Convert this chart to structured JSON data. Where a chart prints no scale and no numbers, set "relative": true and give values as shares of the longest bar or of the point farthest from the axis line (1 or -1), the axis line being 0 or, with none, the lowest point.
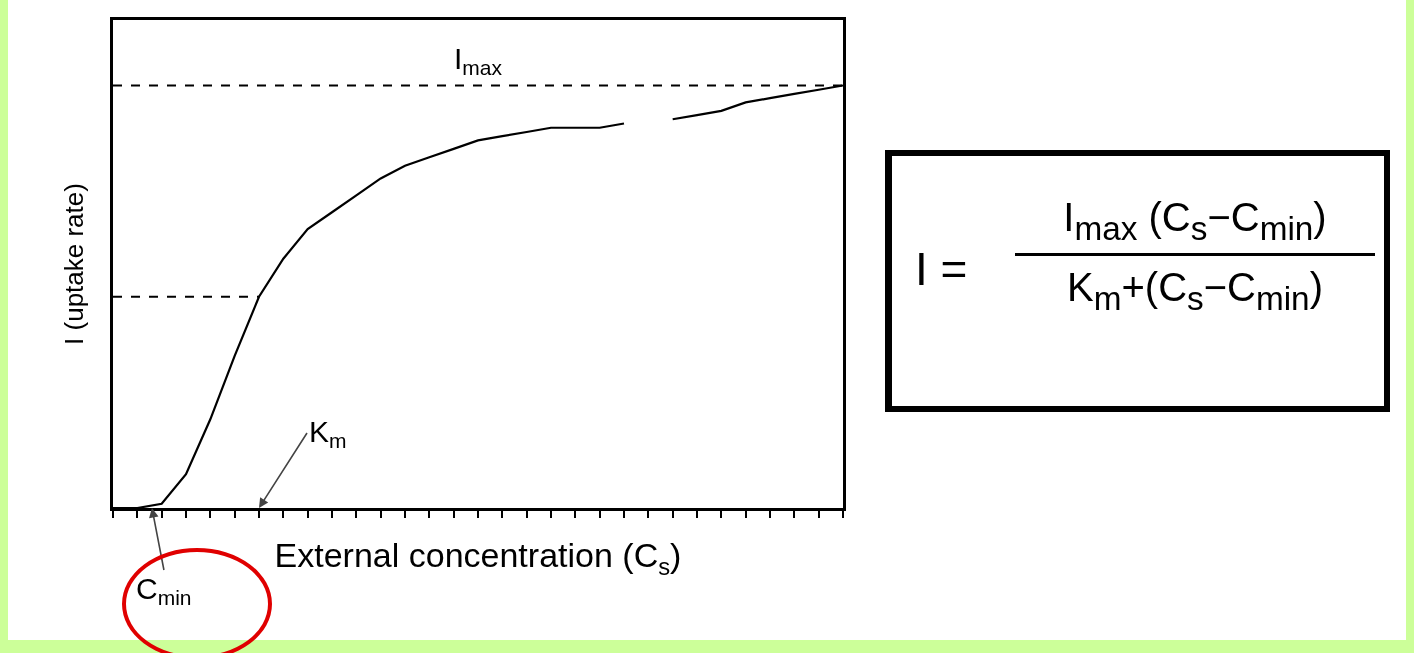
{
  "chart_data": {
    "type": "line",
    "relative": true,
    "xlabel": "External concentration (C$_{s}$)",
    "ylabel": "I (uptake rate)",
    "categories": [
      null,
      null,
      null,
      null,
      null,
      null,
      null,
      null,
      null,
      null,
      null,
      null,
      null,
      null,
      null,
      null,
      null,
      null,
      null,
      null,
      null,
      null,
      null,
      null,
      null,
      null,
      null,
      null,
      null,
      null,
      null
    ],
    "series": [
      {
        "color": "#000000",
        "line_style": "solid",
        "values": [
          0,
          0,
          0.01,
          0.08,
          0.21,
          0.36,
          0.5,
          0.59,
          0.66,
          0.7,
          0.74,
          0.78,
          0.81,
          0.83,
          0.85,
          0.87,
          0.88,
          0.89,
          0.9,
          0.9,
          0.9,
          0.91,
          null,
          0.92,
          0.93,
          0.94,
          0.96,
          0.97,
          0.98,
          0.99,
          1
        ]
      },
      {
        "color": "#000000",
        "line_style": "dashed",
        "values": [
          0.5,
          0.5,
          0.5,
          0.5,
          0.5,
          0.5,
          0.5,
          null,
          null,
          null,
          null,
          null,
          null,
          null,
          null,
          null,
          null,
          null,
          null,
          null,
          null,
          null,
          null,
          null,
          null,
          null,
          null,
          null,
          null,
          null,
          null
        ]
      }
    ],
    "ref_lines": [
      {
        "axis": "y",
        "value": 1,
        "label": "I$_{max}$",
        "line_style": "dashed",
        "color": "#000000"
      }
    ],
    "annotations": [
      "K$_{m}$",
      "C$_{min}$",
      "I =",
      "I$_{max}$ (C$_{s}$−C$_{min}$)",
      "K$_{m}$+(C$_{s}$−C$_{min}$)"
    ],
    "grid": false,
    "marker": "none"
  }
}
